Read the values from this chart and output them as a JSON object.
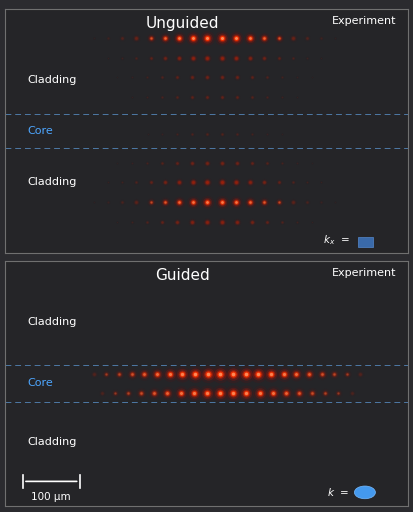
{
  "bg_color": "#2b2b2f",
  "panel_bg": "#252528",
  "border_color": "#707070",
  "title1": "Unguided",
  "title2": "Guided",
  "subtitle": "Experiment",
  "cladding_label": "Cladding",
  "core_label": "Core",
  "core_color": "#4da6ff",
  "label_color": "#ffffff",
  "dashed_line_color": "#5588bb",
  "fig_width": 4.13,
  "fig_height": 5.12,
  "scalebar_label": "100 μm",
  "unguided_rows": [
    [
      0.88,
      0.52,
      0.3,
      18,
      1.0,
      true
    ],
    [
      0.8,
      0.52,
      0.3,
      18,
      0.55,
      false
    ],
    [
      0.72,
      0.52,
      0.28,
      16,
      0.35,
      false
    ],
    [
      0.64,
      0.52,
      0.28,
      16,
      0.28,
      false
    ],
    [
      0.49,
      0.52,
      0.24,
      14,
      0.2,
      false
    ],
    [
      0.37,
      0.52,
      0.28,
      16,
      0.38,
      false
    ],
    [
      0.29,
      0.52,
      0.3,
      18,
      0.6,
      false
    ],
    [
      0.21,
      0.52,
      0.3,
      18,
      0.8,
      true
    ],
    [
      0.13,
      0.52,
      0.28,
      16,
      0.5,
      false
    ]
  ],
  "guided_rows": [
    [
      0.54,
      0.55,
      0.33,
      22,
      1.0,
      true
    ],
    [
      0.46,
      0.55,
      0.31,
      20,
      0.85,
      true
    ]
  ]
}
